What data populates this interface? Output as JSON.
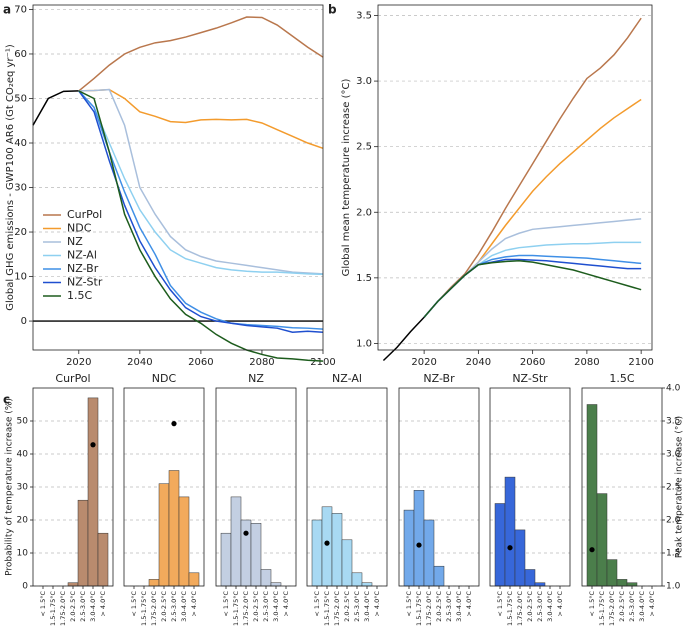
{
  "chart_data": [
    {
      "type": "line",
      "label": "a",
      "ylabel": "Global GHG emissions - GWP100 AR6 (Gt CO₂eq yr⁻¹)",
      "x": [
        2020,
        2025,
        2030,
        2035,
        2040,
        2045,
        2050,
        2055,
        2060,
        2065,
        2070,
        2075,
        2080,
        2085,
        2090,
        2095,
        2100
      ],
      "xlim": [
        2005,
        2100
      ],
      "xticks": [
        2020,
        2040,
        2060,
        2080,
        2100
      ],
      "ylim": [
        -6.5,
        71
      ],
      "yticks": [
        0,
        10,
        20,
        30,
        40,
        50,
        60,
        70
      ],
      "grid": true,
      "reference_line": 0,
      "legend": "center left",
      "history": {
        "color": "#000000",
        "x": [
          2005,
          2010,
          2015,
          2020
        ],
        "values": [
          44,
          50,
          51.6,
          51.7
        ]
      },
      "series": [
        {
          "name": "CurPol",
          "color": "#b9774d",
          "values": [
            51.7,
            54.5,
            57.5,
            60,
            61.5,
            62.5,
            63,
            63.8,
            64.8,
            65.8,
            67,
            68.3,
            68.2,
            66.5,
            64,
            61.5,
            59.3
          ]
        },
        {
          "name": "NDC",
          "color": "#f39b2d",
          "values": [
            51.7,
            51.8,
            52,
            50,
            47,
            46,
            44.8,
            44.6,
            45.2,
            45.3,
            45.2,
            45.3,
            44.5,
            43,
            41.5,
            40,
            38.8
          ]
        },
        {
          "name": "NZ",
          "color": "#a9bfdc",
          "values": [
            51.7,
            51.8,
            52,
            44,
            30,
            24,
            19,
            16,
            14.5,
            13.5,
            13,
            12.5,
            12,
            11.5,
            11,
            10.8,
            10.6
          ]
        },
        {
          "name": "NZ-Al",
          "color": "#8ed0f0",
          "values": [
            51.7,
            48,
            40,
            32,
            25,
            20,
            16,
            14,
            13,
            12,
            11.5,
            11.2,
            11,
            11,
            10.8,
            10.6,
            10.5
          ]
        },
        {
          "name": "NZ-Br",
          "color": "#3f8fe6",
          "values": [
            51.7,
            48,
            38,
            29,
            21,
            15,
            8,
            4,
            2,
            0.5,
            -0.5,
            -0.8,
            -1,
            -1.2,
            -1.5,
            -1.6,
            -1.8
          ]
        },
        {
          "name": "NZ-Str",
          "color": "#1f4fcf",
          "values": [
            51.7,
            47,
            36,
            26,
            18,
            12,
            7,
            3,
            1,
            0,
            -0.5,
            -1,
            -1.3,
            -1.6,
            -2.5,
            -2.3,
            -2.5
          ]
        },
        {
          "name": "1.5C",
          "color": "#1d5c1d",
          "values": [
            51.7,
            50,
            38,
            24,
            16,
            10,
            5,
            1.5,
            -0.5,
            -3,
            -5,
            -6.5,
            -7.5,
            -8.3,
            -8.5,
            -8.8,
            -9
          ]
        }
      ]
    },
    {
      "type": "line",
      "label": "b",
      "ylabel": "Global mean temperature increase (°C)",
      "x": [
        2020,
        2025,
        2030,
        2035,
        2040,
        2045,
        2050,
        2055,
        2060,
        2065,
        2070,
        2075,
        2080,
        2085,
        2090,
        2095,
        2100
      ],
      "xlim": [
        2003,
        2104
      ],
      "xticks": [
        2020,
        2040,
        2060,
        2080,
        2100
      ],
      "ylim": [
        0.95,
        3.58
      ],
      "yticks": [
        {
          "value": 1,
          "label": "1.0"
        },
        {
          "value": 1.5,
          "label": "1.5"
        },
        {
          "value": 2,
          "label": "2.0"
        },
        {
          "value": 2.5,
          "label": "2.5"
        },
        {
          "value": 3,
          "label": "3.0"
        },
        {
          "value": 3.5,
          "label": "3.5"
        }
      ],
      "grid": true,
      "history": {
        "color": "#000000",
        "x": [
          2005,
          2010,
          2015,
          2020
        ],
        "values": [
          0.87,
          0.97,
          1.09,
          1.2
        ]
      },
      "series": [
        {
          "name": "CurPol",
          "color": "#b9774d",
          "values": [
            1.2,
            1.32,
            1.43,
            1.53,
            1.68,
            1.85,
            2.03,
            2.2,
            2.37,
            2.54,
            2.71,
            2.87,
            3.02,
            3.1,
            3.2,
            3.33,
            3.48
          ]
        },
        {
          "name": "NDC",
          "color": "#f39b2d",
          "values": [
            1.2,
            1.32,
            1.42,
            1.52,
            1.62,
            1.76,
            1.9,
            2.03,
            2.16,
            2.27,
            2.37,
            2.46,
            2.55,
            2.64,
            2.72,
            2.79,
            2.86
          ]
        },
        {
          "name": "NZ",
          "color": "#a9bfdc",
          "values": [
            1.2,
            1.32,
            1.42,
            1.52,
            1.62,
            1.72,
            1.8,
            1.84,
            1.87,
            1.88,
            1.89,
            1.9,
            1.91,
            1.92,
            1.93,
            1.94,
            1.95
          ]
        },
        {
          "name": "NZ-Al",
          "color": "#8ed0f0",
          "values": [
            1.2,
            1.32,
            1.42,
            1.52,
            1.6,
            1.67,
            1.71,
            1.73,
            1.74,
            1.75,
            1.755,
            1.76,
            1.76,
            1.765,
            1.77,
            1.77,
            1.77
          ]
        },
        {
          "name": "NZ-Br",
          "color": "#3f8fe6",
          "values": [
            1.2,
            1.32,
            1.42,
            1.52,
            1.6,
            1.64,
            1.66,
            1.67,
            1.67,
            1.665,
            1.66,
            1.655,
            1.65,
            1.64,
            1.63,
            1.62,
            1.61
          ]
        },
        {
          "name": "NZ-Str",
          "color": "#1f4fcf",
          "values": [
            1.2,
            1.32,
            1.42,
            1.52,
            1.6,
            1.62,
            1.64,
            1.64,
            1.635,
            1.63,
            1.62,
            1.61,
            1.6,
            1.59,
            1.58,
            1.57,
            1.57
          ]
        },
        {
          "name": "1.5C",
          "color": "#1d5c1d",
          "values": [
            1.2,
            1.32,
            1.42,
            1.52,
            1.6,
            1.615,
            1.625,
            1.63,
            1.62,
            1.6,
            1.58,
            1.56,
            1.53,
            1.5,
            1.47,
            1.44,
            1.41
          ]
        }
      ]
    },
    {
      "type": "bar",
      "label": "c",
      "ylabel": "Probability of temperature increase (%)",
      "y2label": "Peak temperature increase (°C)",
      "categories": [
        "< 1.5°C",
        "1.5-1.75°C",
        "1.75-2.0°C",
        "2.0-2.5°C",
        "2.5-3.0°C",
        "3.0-4.0°C",
        "> 4.0°C"
      ],
      "ylim": [
        0,
        60
      ],
      "yticks": [
        0,
        10,
        20,
        30,
        40,
        50
      ],
      "y2lim": [
        1,
        4
      ],
      "y2ticks": [
        {
          "value": 1,
          "label": "1.0"
        },
        {
          "value": 1.5,
          "label": "1.5"
        },
        {
          "value": 2,
          "label": "2.0"
        },
        {
          "value": 2.5,
          "label": "2.5"
        },
        {
          "value": 3,
          "label": "3.0"
        },
        {
          "value": 3.5,
          "label": "3.5"
        },
        {
          "value": 4,
          "label": "4.0"
        }
      ],
      "grid": true,
      "panels": [
        {
          "title": "CurPol",
          "color": "#b98b6e",
          "values": [
            0,
            0,
            0,
            1,
            26,
            57,
            16
          ],
          "peak": 3.14
        },
        {
          "title": "NDC",
          "color": "#f2aa5c",
          "values": [
            0,
            0,
            2,
            31,
            35,
            27,
            4
          ],
          "peak": 3.46
        },
        {
          "title": "NZ",
          "color": "#c3cfe2",
          "values": [
            16,
            27,
            20,
            19,
            5,
            1,
            0
          ],
          "peak": 1.8
        },
        {
          "title": "NZ-Al",
          "color": "#a8d9f3",
          "values": [
            20,
            24,
            22,
            14,
            4,
            1,
            0
          ],
          "peak": 1.65
        },
        {
          "title": "NZ-Br",
          "color": "#72a9ea",
          "values": [
            23,
            29,
            20,
            6,
            0,
            0,
            0
          ],
          "peak": 1.62
        },
        {
          "title": "NZ-Str",
          "color": "#3767d9",
          "values": [
            25,
            33,
            17,
            5,
            1,
            0,
            0
          ],
          "peak": 1.58
        },
        {
          "title": "1.5C",
          "color": "#4b7e4b",
          "values": [
            55,
            28,
            8,
            2,
            1,
            0,
            0
          ],
          "peak": 1.55
        }
      ]
    }
  ]
}
